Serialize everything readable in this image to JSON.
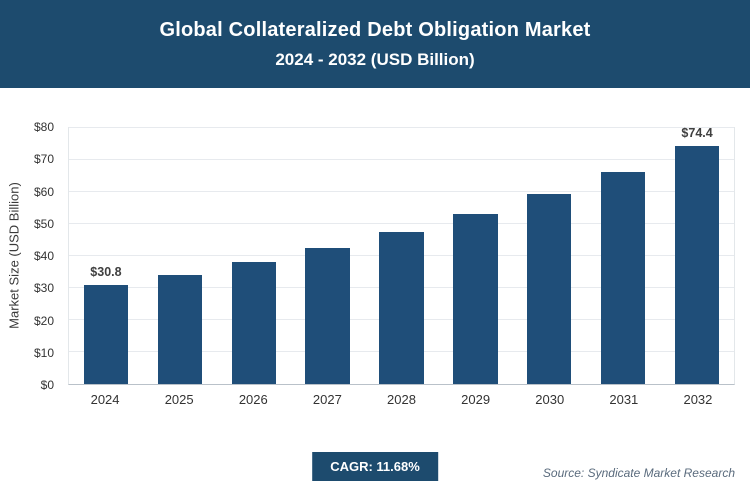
{
  "header": {
    "title_line1": "Global Collateralized Debt Obligation Market",
    "title_line2": "2024 - 2032 (USD Billion)",
    "bg_color": "#1d4b6e"
  },
  "chart_data": {
    "type": "bar",
    "title": "Global Collateralized Debt Obligation Market 2024 - 2032 (USD Billion)",
    "categories": [
      "2024",
      "2025",
      "2026",
      "2027",
      "2028",
      "2029",
      "2030",
      "2031",
      "2032"
    ],
    "values": [
      30.8,
      34.1,
      38.1,
      42.5,
      47.5,
      53.1,
      59.4,
      66.2,
      74.4
    ],
    "bar_color": "#1f4e79",
    "xlabel": "",
    "ylabel": "Market Size (USD Billion)",
    "ylim": [
      0,
      80
    ],
    "ytick_step": 10,
    "ytick_labels": [
      "$0",
      "$10",
      "$20",
      "$30",
      "$40",
      "$50",
      "$60",
      "$70",
      "$80"
    ],
    "data_labels": {
      "first": "$30.8",
      "last": "$74.4"
    },
    "grid": true,
    "legend_position": "none"
  },
  "footer": {
    "cagr_label": "CAGR: 11.68%",
    "source": "Source: Syndicate Market Research"
  }
}
